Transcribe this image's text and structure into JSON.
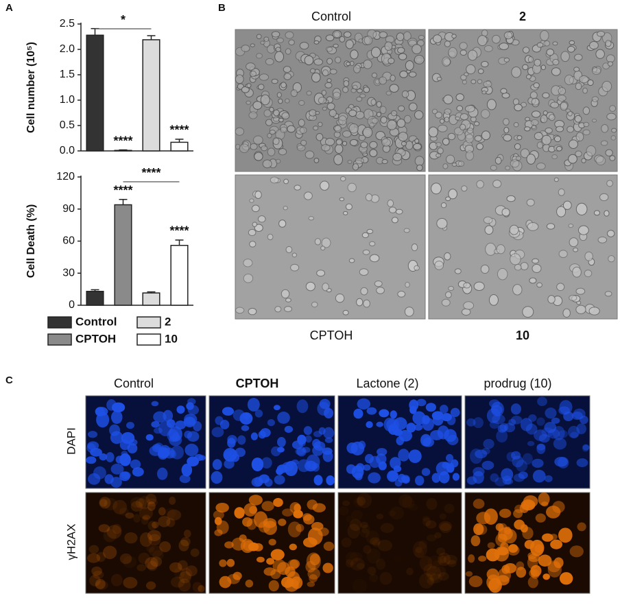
{
  "panel_labels": [
    "A",
    "B",
    "C"
  ],
  "chart_data": [
    {
      "type": "bar",
      "y_label": "Cell number (10⁵)",
      "categories": [
        "Control",
        "CPTOH",
        "2",
        "10"
      ],
      "values": [
        2.28,
        0.01,
        2.19,
        0.17
      ],
      "errors": [
        0.13,
        0.01,
        0.08,
        0.06
      ],
      "colors": [
        "#333333",
        "#8a8a8a",
        "#dcdcdc",
        "#ffffff"
      ],
      "ylim": [
        0,
        2.5
      ],
      "yticks": [
        {
          "value": 0,
          "label": "0.0"
        },
        {
          "value": 0.5,
          "label": "0.5"
        },
        {
          "value": 1,
          "label": "1.0"
        },
        {
          "value": 1.5,
          "label": "1.5"
        },
        {
          "value": 2,
          "label": "2.0"
        },
        {
          "value": 2.5,
          "label": "2.5"
        }
      ],
      "annotations": [
        {
          "text": "****",
          "category": "CPTOH"
        },
        {
          "text": "****",
          "category": "10"
        }
      ],
      "brackets": [
        {
          "text": "*",
          "between": [
            "Control",
            "2"
          ]
        }
      ]
    },
    {
      "type": "bar",
      "y_label": "Cell Death (%)",
      "categories": [
        "Control",
        "CPTOH",
        "2",
        "10"
      ],
      "values": [
        13,
        94,
        11.5,
        56
      ],
      "errors": [
        1.5,
        5,
        1,
        5
      ],
      "colors": [
        "#333333",
        "#8a8a8a",
        "#dcdcdc",
        "#ffffff"
      ],
      "ylim": [
        0,
        120
      ],
      "yticks": [
        0,
        30,
        60,
        90,
        120
      ],
      "annotations": [
        {
          "text": "****",
          "category": "CPTOH"
        },
        {
          "text": "****",
          "category": "10"
        }
      ],
      "brackets": [
        {
          "text": "****",
          "between": [
            "CPTOH",
            "10"
          ]
        }
      ]
    }
  ],
  "micrographs": {
    "top_labels": [
      "Control",
      "2"
    ],
    "bottom_labels": [
      "CPTOH",
      "10"
    ]
  },
  "immunofluorescence": {
    "columns": [
      "Control",
      "CPTOH",
      "Lactone (2)",
      "prodrug (10)"
    ],
    "rows": [
      "DAPI",
      "γH2AX"
    ]
  }
}
